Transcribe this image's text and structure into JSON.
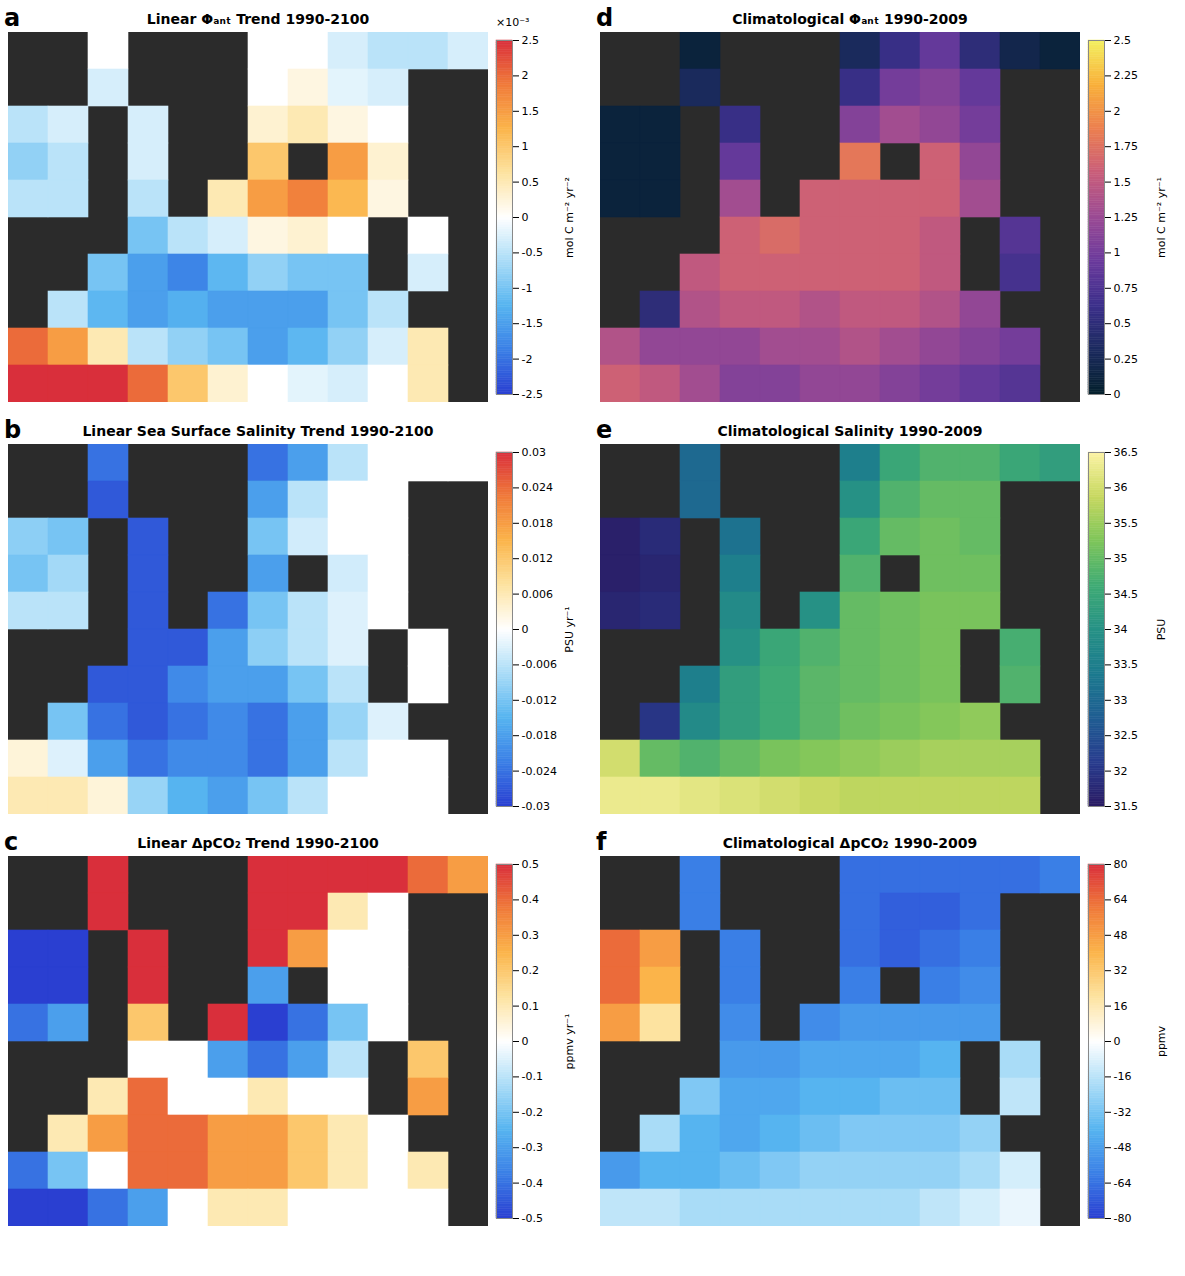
{
  "chart_data": [
    {
      "type": "heatmap",
      "panel": "a",
      "title": "Linear Φₐₙₜ Trend 1990-2100",
      "color": "RdBu",
      "colorbar_range": [
        -2.5,
        2.5
      ],
      "colorbar_ticks": [
        -2.5,
        -2,
        -1.5,
        -1,
        -0.5,
        0,
        0.5,
        1,
        1.5,
        2,
        2.5
      ],
      "colorbar_label": "mol C m⁻² yr⁻²",
      "colorbar_multiplier": "×10⁻³",
      "cells": [
        [
          null,
          null,
          0,
          null,
          null,
          null,
          0,
          0,
          -0.3,
          -0.5,
          -0.5,
          -0.3
        ],
        [
          null,
          null,
          -0.3,
          null,
          null,
          null,
          0,
          0.2,
          -0.2,
          -0.3,
          null,
          null
        ],
        [
          -0.5,
          -0.3,
          null,
          -0.3,
          null,
          null,
          0.3,
          0.5,
          0.2,
          0,
          null,
          null
        ],
        [
          -0.8,
          -0.5,
          null,
          -0.3,
          null,
          null,
          1.0,
          null,
          1.5,
          0.3,
          null,
          null
        ],
        [
          -0.5,
          -0.5,
          null,
          -0.5,
          null,
          0.5,
          1.5,
          1.8,
          1.2,
          0.2,
          null,
          null
        ],
        [
          null,
          null,
          null,
          -1.0,
          -0.5,
          -0.3,
          0.2,
          0.3,
          0,
          null,
          0,
          null
        ],
        [
          null,
          null,
          -1.0,
          -1.5,
          -1.8,
          -1.2,
          -0.8,
          -1.0,
          -1.0,
          null,
          -0.3,
          null
        ],
        [
          null,
          -0.5,
          -1.2,
          -1.5,
          -1.3,
          -1.5,
          -1.5,
          -1.5,
          -1.0,
          -0.5,
          null,
          null
        ],
        [
          2.0,
          1.5,
          0.5,
          -0.5,
          -0.8,
          -1.0,
          -1.5,
          -1.2,
          -0.8,
          -0.3,
          0.5,
          null
        ],
        [
          2.5,
          2.5,
          2.5,
          2.0,
          1.0,
          0.3,
          0,
          -0.2,
          -0.3,
          0,
          0.5,
          null
        ]
      ]
    },
    {
      "type": "heatmap",
      "panel": "d",
      "title": "Climatological Φₐₙₜ 1990-2009",
      "color": "thermal",
      "colorbar_range": [
        0,
        2.5
      ],
      "colorbar_ticks": [
        0,
        0.25,
        0.5,
        0.75,
        1,
        1.25,
        1.5,
        1.75,
        2,
        2.25,
        2.5
      ],
      "colorbar_label": "mol C m⁻² yr⁻¹",
      "cells": [
        [
          null,
          null,
          0.1,
          null,
          null,
          null,
          0.3,
          0.6,
          0.9,
          0.5,
          0.2,
          0.1
        ],
        [
          null,
          null,
          0.3,
          null,
          null,
          null,
          0.6,
          1.0,
          1.1,
          0.9,
          null,
          null
        ],
        [
          0.1,
          0.1,
          null,
          0.6,
          null,
          null,
          1.1,
          1.3,
          1.2,
          1.0,
          null,
          null
        ],
        [
          0.1,
          0.1,
          null,
          0.9,
          null,
          null,
          1.8,
          null,
          1.6,
          1.2,
          null,
          null
        ],
        [
          0.1,
          0.1,
          null,
          1.3,
          null,
          1.6,
          1.6,
          1.6,
          1.6,
          1.3,
          null,
          null
        ],
        [
          null,
          null,
          null,
          1.6,
          1.7,
          1.6,
          1.6,
          1.6,
          1.5,
          null,
          0.8,
          null
        ],
        [
          null,
          null,
          1.5,
          1.6,
          1.6,
          1.6,
          1.6,
          1.6,
          1.5,
          null,
          0.7,
          null
        ],
        [
          null,
          0.5,
          1.4,
          1.5,
          1.5,
          1.4,
          1.5,
          1.5,
          1.4,
          1.2,
          null,
          null
        ],
        [
          1.4,
          1.2,
          1.2,
          1.2,
          1.3,
          1.3,
          1.4,
          1.3,
          1.2,
          1.1,
          1.0,
          null
        ],
        [
          1.6,
          1.5,
          1.3,
          1.1,
          1.1,
          1.2,
          1.2,
          1.1,
          1.0,
          0.9,
          0.8,
          null
        ]
      ]
    },
    {
      "type": "heatmap",
      "panel": "b",
      "title": "Linear Sea Surface Salinity Trend 1990-2100",
      "color": "RdBu",
      "colorbar_range": [
        -0.03,
        0.03
      ],
      "colorbar_ticks": [
        -0.03,
        -0.024,
        -0.018,
        -0.012,
        -0.006,
        0,
        0.006,
        0.012,
        0.018,
        0.024,
        0.03
      ],
      "colorbar_label": "PSU yr⁻¹",
      "cells": [
        [
          null,
          null,
          -0.024,
          null,
          null,
          null,
          -0.024,
          -0.018,
          -0.006,
          0,
          0,
          0
        ],
        [
          null,
          null,
          -0.027,
          null,
          null,
          null,
          -0.018,
          -0.006,
          0,
          0,
          null,
          null
        ],
        [
          -0.01,
          -0.012,
          null,
          -0.027,
          null,
          null,
          -0.012,
          -0.004,
          0,
          0,
          null,
          null
        ],
        [
          -0.012,
          -0.008,
          null,
          -0.027,
          null,
          null,
          -0.018,
          null,
          -0.004,
          0,
          null,
          null
        ],
        [
          -0.006,
          -0.006,
          null,
          -0.027,
          null,
          -0.024,
          -0.012,
          -0.006,
          -0.003,
          0,
          null,
          null
        ],
        [
          null,
          null,
          null,
          -0.027,
          -0.027,
          -0.018,
          -0.01,
          -0.006,
          -0.003,
          null,
          0,
          null
        ],
        [
          null,
          null,
          -0.027,
          -0.027,
          -0.021,
          -0.018,
          -0.018,
          -0.012,
          -0.006,
          null,
          0,
          null
        ],
        [
          null,
          -0.012,
          -0.024,
          -0.027,
          -0.024,
          -0.021,
          -0.024,
          -0.018,
          -0.009,
          -0.003,
          null,
          null
        ],
        [
          0.003,
          -0.003,
          -0.018,
          -0.024,
          -0.021,
          -0.021,
          -0.024,
          -0.018,
          -0.006,
          0,
          0,
          null
        ],
        [
          0.006,
          0.006,
          0.003,
          -0.009,
          -0.015,
          -0.018,
          -0.012,
          -0.006,
          0,
          0,
          0,
          null
        ]
      ]
    },
    {
      "type": "heatmap",
      "panel": "e",
      "title": "Climatological Salinity 1990-2009",
      "color": "haline",
      "colorbar_range": [
        31.5,
        36.5
      ],
      "colorbar_ticks": [
        31.5,
        32,
        32.5,
        33,
        33.5,
        34,
        34.5,
        35,
        35.5,
        36,
        36.5
      ],
      "colorbar_label": "PSU",
      "cells": [
        [
          null,
          null,
          33.0,
          null,
          null,
          null,
          33.5,
          34.5,
          34.8,
          34.8,
          34.5,
          34.3
        ],
        [
          null,
          null,
          33.0,
          null,
          null,
          null,
          34.0,
          34.8,
          35.0,
          35.0,
          null,
          null
        ],
        [
          31.6,
          31.8,
          null,
          33.2,
          null,
          null,
          34.5,
          35.0,
          35.1,
          35.0,
          null,
          null
        ],
        [
          31.6,
          31.7,
          null,
          33.5,
          null,
          null,
          34.8,
          null,
          35.1,
          35.1,
          null,
          null
        ],
        [
          31.7,
          31.8,
          null,
          33.8,
          null,
          34.0,
          35.0,
          35.1,
          35.2,
          35.2,
          null,
          null
        ],
        [
          null,
          null,
          null,
          34.0,
          34.5,
          34.8,
          35.0,
          35.1,
          35.2,
          null,
          34.7,
          null
        ],
        [
          null,
          null,
          33.5,
          34.3,
          34.6,
          34.9,
          35.0,
          35.1,
          35.2,
          null,
          34.8,
          null
        ],
        [
          null,
          32.0,
          33.8,
          34.3,
          34.6,
          34.9,
          35.1,
          35.2,
          35.3,
          35.4,
          null,
          null
        ],
        [
          36.0,
          35.0,
          34.8,
          35.0,
          35.2,
          35.3,
          35.4,
          35.5,
          35.6,
          35.6,
          35.6,
          null
        ],
        [
          36.3,
          36.3,
          36.2,
          36.1,
          36.0,
          35.9,
          35.8,
          35.8,
          35.8,
          35.8,
          35.8,
          null
        ]
      ]
    },
    {
      "type": "heatmap",
      "panel": "c",
      "title": "Linear ΔpCO₂ Trend 1990-2100",
      "color": "RdBu",
      "colorbar_range": [
        -0.5,
        0.5
      ],
      "colorbar_ticks": [
        -0.5,
        -0.4,
        -0.3,
        -0.2,
        -0.1,
        0,
        0.1,
        0.2,
        0.3,
        0.4,
        0.5
      ],
      "colorbar_label": "ppmv yr⁻¹",
      "cells": [
        [
          null,
          null,
          0.5,
          null,
          null,
          null,
          0.5,
          0.5,
          0.5,
          0.5,
          0.4,
          0.3
        ],
        [
          null,
          null,
          0.5,
          null,
          null,
          null,
          0.5,
          0.5,
          0.1,
          0,
          null,
          null
        ],
        [
          -0.5,
          -0.5,
          null,
          0.5,
          null,
          null,
          0.5,
          0.3,
          0,
          0,
          null,
          null
        ],
        [
          -0.5,
          -0.5,
          null,
          0.5,
          null,
          null,
          -0.3,
          null,
          0,
          0,
          null,
          null
        ],
        [
          -0.4,
          -0.3,
          null,
          0.2,
          null,
          0.5,
          -0.5,
          -0.4,
          -0.2,
          0,
          null,
          null
        ],
        [
          null,
          null,
          null,
          0,
          0,
          -0.3,
          -0.4,
          -0.3,
          -0.1,
          null,
          0.2,
          null
        ],
        [
          null,
          null,
          0.1,
          0.4,
          0,
          0,
          0.1,
          0,
          0,
          null,
          0.3,
          null
        ],
        [
          null,
          0.1,
          0.3,
          0.4,
          0.4,
          0.3,
          0.3,
          0.2,
          0.1,
          0,
          null,
          null
        ],
        [
          -0.4,
          -0.2,
          0,
          0.4,
          0.4,
          0.3,
          0.3,
          0.2,
          0.1,
          0,
          0.1,
          null
        ],
        [
          -0.5,
          -0.5,
          -0.4,
          -0.3,
          0,
          0.1,
          0.1,
          0,
          0,
          0,
          0,
          null
        ]
      ]
    },
    {
      "type": "heatmap",
      "panel": "f",
      "title": "Climatological ΔpCO₂ 1990-2009",
      "color": "RdBu",
      "colorbar_range": [
        -80,
        80
      ],
      "colorbar_ticks": [
        -80,
        -64,
        -48,
        -32,
        -16,
        0,
        16,
        32,
        48,
        64,
        80
      ],
      "colorbar_label": "ppmv",
      "cells": [
        [
          null,
          null,
          -60,
          null,
          null,
          null,
          -65,
          -65,
          -65,
          -65,
          -65,
          -60
        ],
        [
          null,
          null,
          -60,
          null,
          null,
          null,
          -65,
          -70,
          -70,
          -65,
          null,
          null
        ],
        [
          64,
          48,
          null,
          -60,
          null,
          null,
          -65,
          -70,
          -65,
          -60,
          null,
          null
        ],
        [
          64,
          40,
          null,
          -60,
          null,
          null,
          -60,
          null,
          -60,
          -55,
          null,
          null
        ],
        [
          48,
          20,
          null,
          -55,
          null,
          -55,
          -50,
          -50,
          -50,
          -50,
          null,
          null
        ],
        [
          null,
          null,
          null,
          -50,
          -50,
          -45,
          -45,
          -45,
          -40,
          null,
          -20,
          null
        ],
        [
          null,
          null,
          -30,
          -45,
          -45,
          -40,
          -40,
          -35,
          -35,
          null,
          -15,
          null
        ],
        [
          null,
          -20,
          -40,
          -45,
          -40,
          -35,
          -30,
          -30,
          -30,
          -25,
          null,
          null
        ],
        [
          -50,
          -40,
          -40,
          -35,
          -30,
          -25,
          -25,
          -25,
          -25,
          -20,
          -10,
          null
        ],
        [
          -15,
          -15,
          -20,
          -20,
          -20,
          -20,
          -20,
          -20,
          -15,
          -10,
          -5,
          null
        ]
      ]
    }
  ]
}
